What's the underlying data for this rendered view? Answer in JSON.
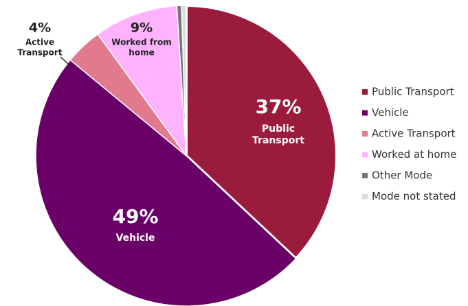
{
  "chart_data": {
    "type": "pie",
    "categories": [
      "Public Transport",
      "Vehicle",
      "Active Transport",
      "Worked at home",
      "Other Mode",
      "Mode not stated"
    ],
    "values": [
      37,
      49,
      4,
      9,
      0.5,
      0.5
    ],
    "value_labels": [
      "37%",
      "49%",
      "4%",
      "9%",
      null,
      null
    ],
    "slice_labels": [
      [
        "Public",
        "Transport"
      ],
      [
        "Vehicle"
      ],
      [
        "Active",
        "Transport"
      ],
      [
        "Worked from",
        "home"
      ],
      null,
      null
    ],
    "colors": [
      "#9b1b3c",
      "#6a0067",
      "#e07a8c",
      "#ffb3ff",
      "#777777",
      "#dddddd"
    ],
    "legend": "right"
  }
}
